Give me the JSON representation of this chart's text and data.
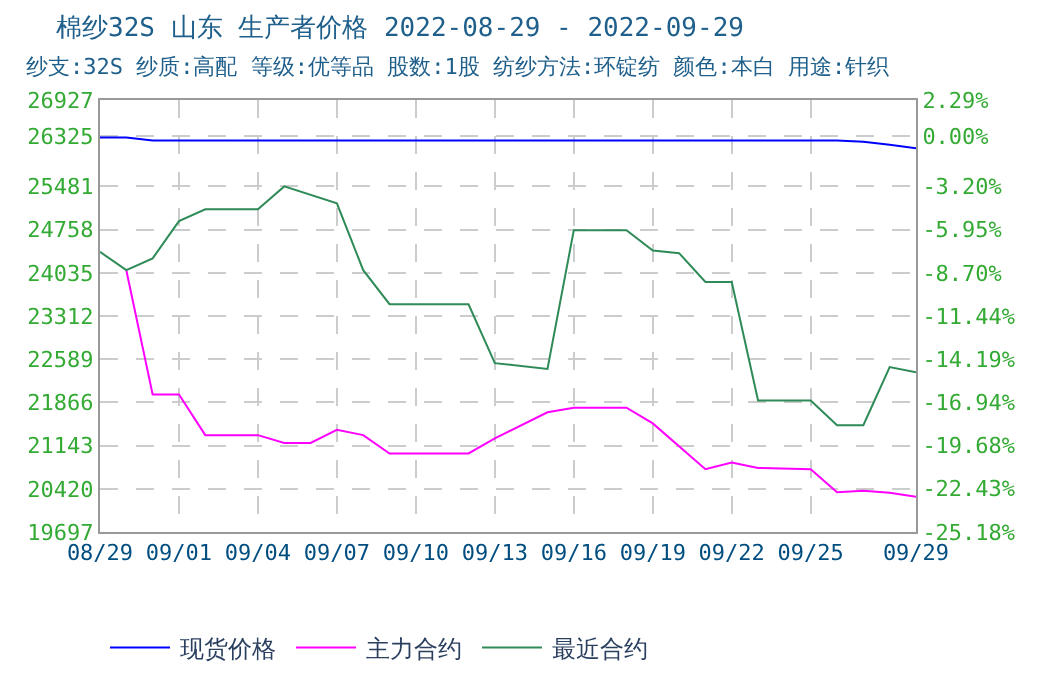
{
  "chart_data": {
    "type": "line",
    "title": "棉纱32S 山东 生产者价格 2022-08-29 - 2022-09-29",
    "subtitle": "纱支:32S 纱质:高配 等级:优等品 股数:1股 纺纱方法:环锭纺 颜色:本白 用途:针织",
    "x": [
      "2022-08-29",
      "2022-08-30",
      "2022-08-31",
      "2022-09-26",
      "2022-09-27",
      "2022-09-28",
      "2022-09-29"
    ],
    "series": [
      {
        "name": "现货价格",
        "color": "#0000ff",
        "values": [
          26300,
          26300,
          26250,
          26250,
          26230,
          26180,
          26120
        ]
      },
      {
        "name": "主力合约",
        "color": "#ff00ff",
        "x": [
          "2022-08-30",
          "2022-08-31",
          "2022-09-01",
          "2022-09-02",
          "2022-09-04",
          "2022-09-05",
          "2022-09-06",
          "2022-09-07",
          "2022-09-08",
          "2022-09-09",
          "2022-09-12",
          "2022-09-13",
          "2022-09-15",
          "2022-09-16",
          "2022-09-18",
          "2022-09-19",
          "2022-09-21",
          "2022-09-22",
          "2022-09-23",
          "2022-09-25",
          "2022-09-26",
          "2022-09-27",
          "2022-09-28",
          "2022-09-29"
        ],
        "values": [
          24079,
          21997,
          21997,
          21318,
          21318,
          21187,
          21187,
          21406,
          21318,
          21011,
          21011,
          21263,
          21700,
          21778,
          21778,
          21515,
          20748,
          20858,
          20770,
          20748,
          20364,
          20386,
          20353,
          20288
        ]
      },
      {
        "name": "最近合约",
        "color": "#2e8b57",
        "x": [
          "2022-08-29",
          "2022-08-30",
          "2022-08-31",
          "2022-09-01",
          "2022-09-02",
          "2022-09-04",
          "2022-09-05",
          "2022-09-07",
          "2022-09-08",
          "2022-09-09",
          "2022-09-12",
          "2022-09-13",
          "2022-09-15",
          "2022-09-16",
          "2022-09-18",
          "2022-09-19",
          "2022-09-20",
          "2022-09-21",
          "2022-09-22",
          "2022-09-23",
          "2022-09-25",
          "2022-09-26",
          "2022-09-27",
          "2022-09-28",
          "2022-09-29"
        ],
        "values": [
          24385,
          24079,
          24276,
          24900,
          25098,
          25098,
          25481,
          25196,
          24079,
          23509,
          23509,
          22523,
          22425,
          24747,
          24747,
          24407,
          24364,
          23882,
          23882,
          21899,
          21899,
          21483,
          21483,
          22457,
          22370
        ]
      }
    ],
    "xlim": [
      "2022-08-29",
      "2022-09-29"
    ],
    "xticks": [
      {
        "value": "2022-08-29",
        "label": "08/29"
      },
      {
        "value": "2022-09-01",
        "label": "09/01"
      },
      {
        "value": "2022-09-04",
        "label": "09/04"
      },
      {
        "value": "2022-09-07",
        "label": "09/07"
      },
      {
        "value": "2022-09-10",
        "label": "09/10"
      },
      {
        "value": "2022-09-13",
        "label": "09/13"
      },
      {
        "value": "2022-09-16",
        "label": "09/16"
      },
      {
        "value": "2022-09-19",
        "label": "09/19"
      },
      {
        "value": "2022-09-22",
        "label": "09/22"
      },
      {
        "value": "2022-09-25",
        "label": "09/25"
      },
      {
        "value": "2022-09-29",
        "label": "09/29"
      }
    ],
    "ylim": [
      19697,
      26927
    ],
    "yticks": [
      19697,
      20420,
      21143,
      21866,
      22589,
      23312,
      24035,
      24758,
      25481,
      26325,
      26927
    ],
    "y2lim": [
      -25.18,
      2.29
    ],
    "y2ticks": [
      {
        "value": -25.18,
        "label": "-25.18%"
      },
      {
        "value": -22.43,
        "label": "-22.43%"
      },
      {
        "value": -19.68,
        "label": "-19.68%"
      },
      {
        "value": -16.94,
        "label": "-16.94%"
      },
      {
        "value": -14.19,
        "label": "-14.19%"
      },
      {
        "value": -11.44,
        "label": "-11.44%"
      },
      {
        "value": -8.7,
        "label": "-8.70%"
      },
      {
        "value": -5.95,
        "label": "-5.95%"
      },
      {
        "value": -3.2,
        "label": "-3.20%"
      },
      {
        "value": 0,
        "label": "0.00%"
      },
      {
        "value": 2.29,
        "label": "2.29%"
      }
    ],
    "grid": true,
    "legend": "bottom",
    "marker": "none",
    "line_style": "solid"
  }
}
